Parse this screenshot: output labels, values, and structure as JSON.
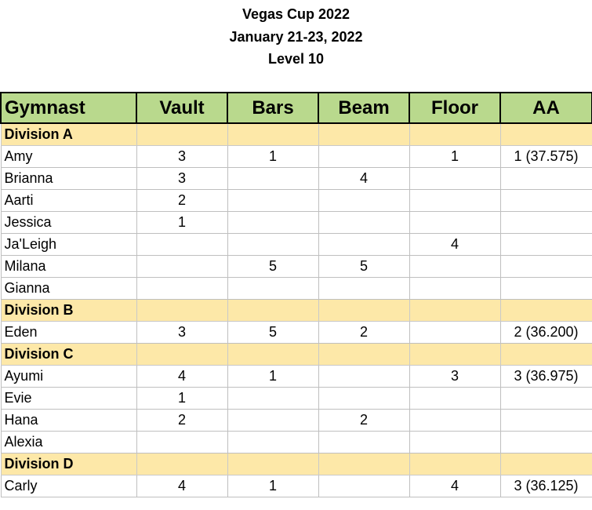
{
  "title": {
    "line1": "Vegas Cup 2022",
    "line2": "January 21-23, 2022",
    "line3": "Level 10"
  },
  "colors": {
    "header_bg": "#b9d98d",
    "division_bg": "#fde8a8",
    "grid": "#bfbfbf"
  },
  "table": {
    "headers": [
      "Gymnast",
      "Vault",
      "Bars",
      "Beam",
      "Floor",
      "AA"
    ],
    "rows": [
      {
        "type": "division",
        "name": "Division A",
        "vault": "",
        "bars": "",
        "beam": "",
        "floor": "",
        "aa": ""
      },
      {
        "type": "gymnast",
        "name": "Amy",
        "vault": "3",
        "bars": "1",
        "beam": "",
        "floor": "1",
        "aa": "1 (37.575)"
      },
      {
        "type": "gymnast",
        "name": "Brianna",
        "vault": "3",
        "bars": "",
        "beam": "4",
        "floor": "",
        "aa": ""
      },
      {
        "type": "gymnast",
        "name": "Aarti",
        "vault": "2",
        "bars": "",
        "beam": "",
        "floor": "",
        "aa": ""
      },
      {
        "type": "gymnast",
        "name": "Jessica",
        "vault": "1",
        "bars": "",
        "beam": "",
        "floor": "",
        "aa": ""
      },
      {
        "type": "gymnast",
        "name": "Ja'Leigh",
        "vault": "",
        "bars": "",
        "beam": "",
        "floor": "4",
        "aa": ""
      },
      {
        "type": "gymnast",
        "name": "Milana",
        "vault": "",
        "bars": "5",
        "beam": "5",
        "floor": "",
        "aa": ""
      },
      {
        "type": "gymnast",
        "name": "Gianna",
        "vault": "",
        "bars": "",
        "beam": "",
        "floor": "",
        "aa": ""
      },
      {
        "type": "division",
        "name": "Division B",
        "vault": "",
        "bars": "",
        "beam": "",
        "floor": "",
        "aa": ""
      },
      {
        "type": "gymnast",
        "name": "Eden",
        "vault": "3",
        "bars": "5",
        "beam": "2",
        "floor": "",
        "aa": "2 (36.200)"
      },
      {
        "type": "division",
        "name": "Division C",
        "vault": "",
        "bars": "",
        "beam": "",
        "floor": "",
        "aa": ""
      },
      {
        "type": "gymnast",
        "name": "Ayumi",
        "vault": "4",
        "bars": "1",
        "beam": "",
        "floor": "3",
        "aa": "3 (36.975)"
      },
      {
        "type": "gymnast",
        "name": "Evie",
        "vault": "1",
        "bars": "",
        "beam": "",
        "floor": "",
        "aa": ""
      },
      {
        "type": "gymnast",
        "name": "Hana",
        "vault": "2",
        "bars": "",
        "beam": "2",
        "floor": "",
        "aa": ""
      },
      {
        "type": "gymnast",
        "name": "Alexia",
        "vault": "",
        "bars": "",
        "beam": "",
        "floor": "",
        "aa": ""
      },
      {
        "type": "division",
        "name": "Division D",
        "vault": "",
        "bars": "",
        "beam": "",
        "floor": "",
        "aa": ""
      },
      {
        "type": "gymnast",
        "name": "Carly",
        "vault": "4",
        "bars": "1",
        "beam": "",
        "floor": "4",
        "aa": "3 (36.125)"
      }
    ]
  }
}
